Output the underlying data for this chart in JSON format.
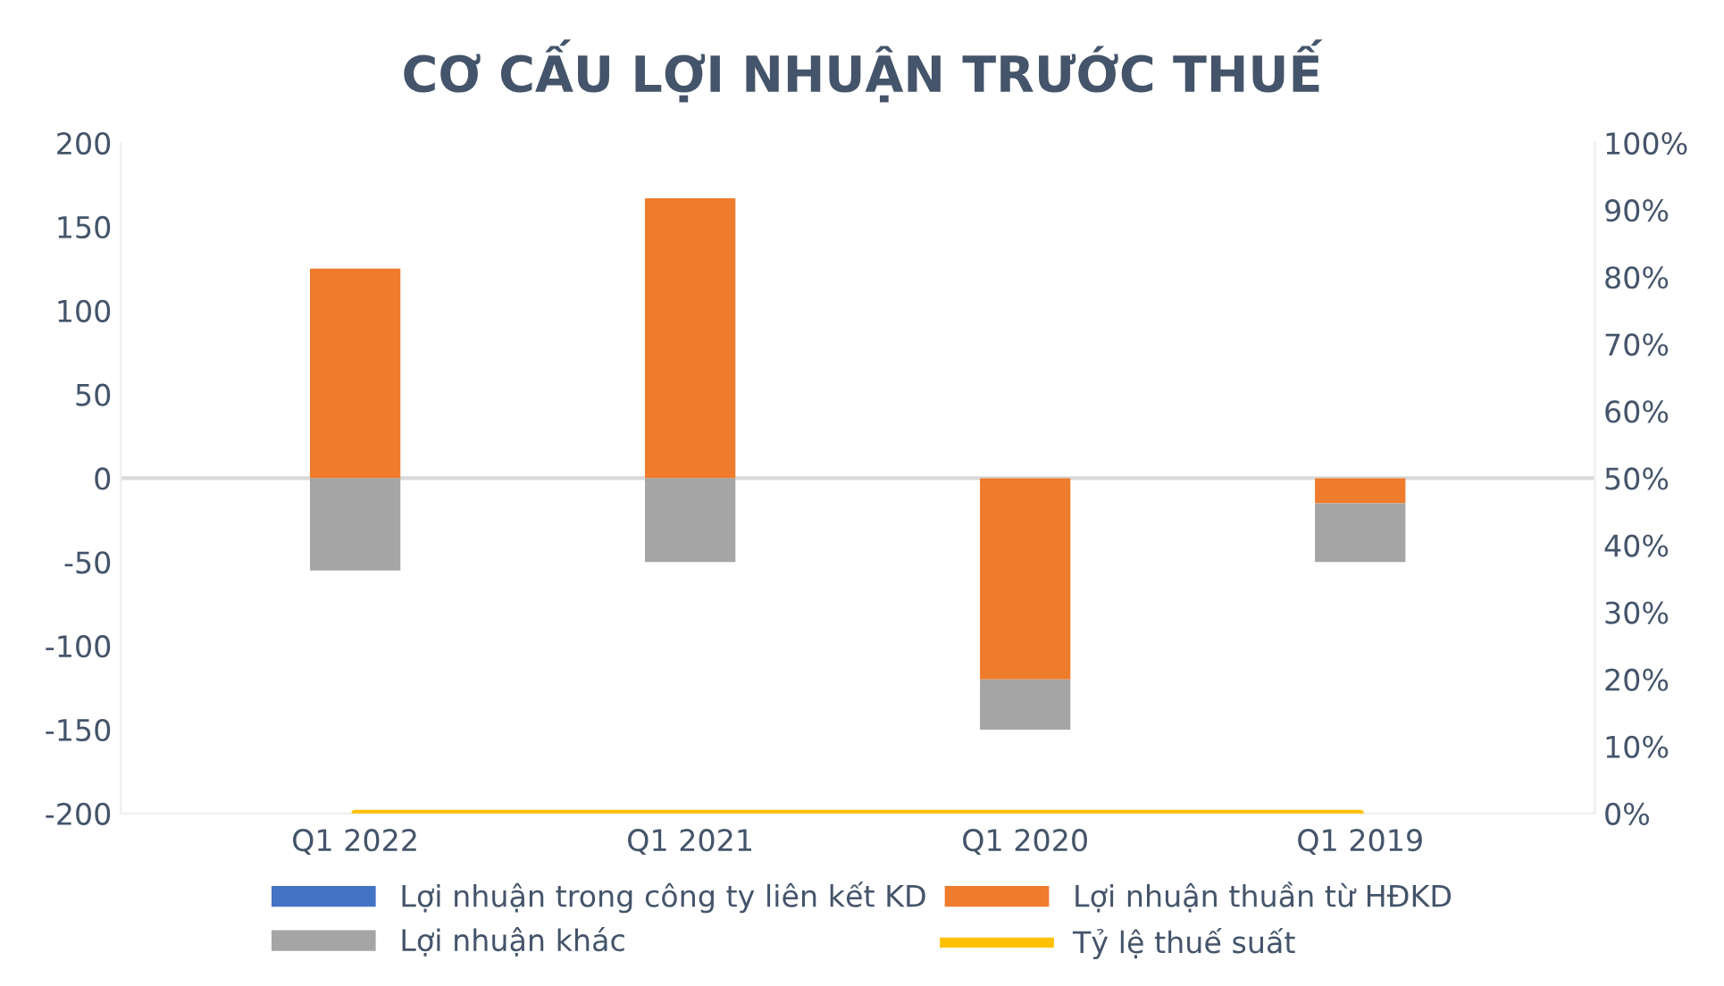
{
  "chart_data": {
    "type": "bar",
    "title": "CƠ CẤU LỢI NHUẬN TRƯỚC THUẾ",
    "stacked": true,
    "categories": [
      "Q1 2022",
      "Q1 2021",
      "Q1 2020",
      "Q1 2019"
    ],
    "series": [
      {
        "name": "Lợi nhuận trong công ty liên kết KD",
        "color": "#4472c4",
        "values": [
          0,
          0,
          0,
          0
        ]
      },
      {
        "name": "Lợi nhuận thuần từ HĐKD",
        "color": "#ef7b2c",
        "values": [
          125,
          167,
          -120,
          -15
        ]
      },
      {
        "name": "Lợi nhuận khác",
        "color": "#a5a5a5",
        "values": [
          -55,
          -50,
          -30,
          -35
        ]
      },
      {
        "name": "Tỷ lệ thuế suất",
        "type": "line",
        "axis": "y2",
        "color": "#ffc000",
        "values": [
          0,
          0,
          0,
          0
        ]
      }
    ],
    "ylim": [
      -200,
      200
    ],
    "yticks": [
      -200,
      -150,
      -100,
      -50,
      0,
      50,
      100,
      150,
      200
    ],
    "y2lim": [
      0,
      100
    ],
    "y2ticks": [
      {
        "value": 0,
        "label": "0%"
      },
      {
        "value": 10,
        "label": "10%"
      },
      {
        "value": 20,
        "label": "20%"
      },
      {
        "value": 30,
        "label": "30%"
      },
      {
        "value": 40,
        "label": "40%"
      },
      {
        "value": 50,
        "label": "50%"
      },
      {
        "value": 60,
        "label": "60%"
      },
      {
        "value": 70,
        "label": "70%"
      },
      {
        "value": 80,
        "label": "80%"
      },
      {
        "value": 90,
        "label": "90%"
      },
      {
        "value": 100,
        "label": "100%"
      }
    ],
    "ref_lines": [
      {
        "axis": "y",
        "value": 0,
        "color": "#d9d9d9"
      }
    ],
    "grid": false,
    "legend": "bottom"
  }
}
